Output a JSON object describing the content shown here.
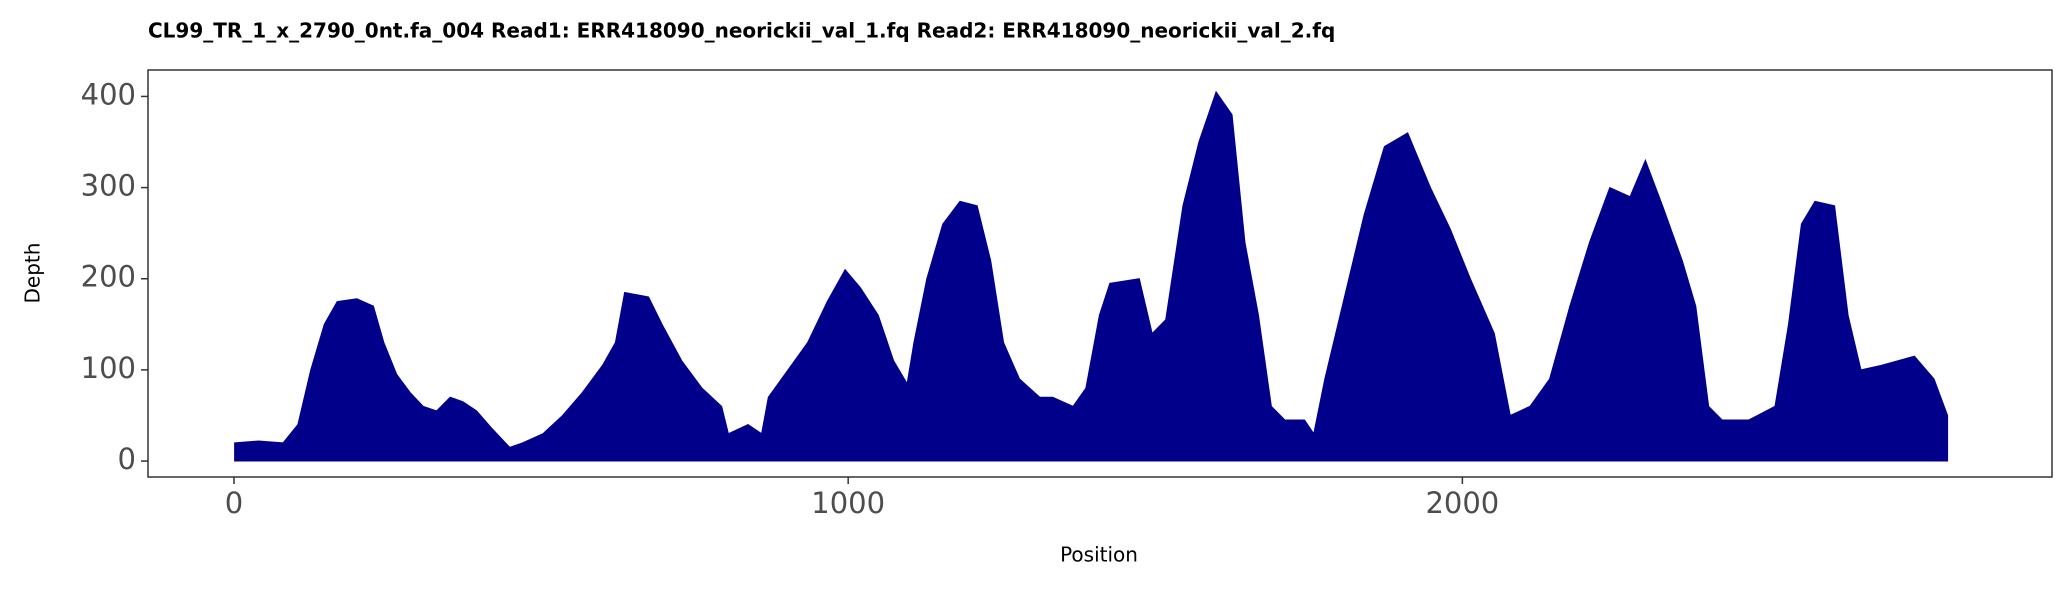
{
  "chart_data": {
    "type": "area",
    "title": "CL99_TR_1_x_2790_0nt.fa_004   Read1: ERR418090_neorickii_val_1.fq   Read2: ERR418090_neorickii_val_2.fq",
    "x_label": "Position",
    "y_label": "Depth",
    "color": "#00008b",
    "x": [
      1,
      40,
      80,
      104,
      125,
      147,
      168,
      200,
      227,
      244,
      265,
      287,
      308,
      330,
      352,
      373,
      395,
      421,
      449,
      470,
      503,
      535,
      567,
      600,
      621,
      636,
      675,
      697,
      729,
      762,
      794,
      805,
      837,
      859,
      870,
      902,
      934,
      966,
      995,
      1020,
      1049,
      1074,
      1096,
      1107,
      1128,
      1154,
      1182,
      1210,
      1232,
      1253,
      1279,
      1312,
      1333,
      1366,
      1387,
      1409,
      1426,
      1474,
      1495,
      1517,
      1545,
      1571,
      1599,
      1625,
      1646,
      1668,
      1689,
      1711,
      1743,
      1758,
      1776,
      1808,
      1840,
      1873,
      1911,
      1948,
      1980,
      2013,
      2052,
      2078,
      2110,
      2142,
      2175,
      2207,
      2240,
      2273,
      2298,
      2326,
      2358,
      2380,
      2401,
      2423,
      2466,
      2509,
      2531,
      2552,
      2574,
      2606,
      2628,
      2649,
      2682,
      2736,
      2768,
      2790
    ],
    "values": [
      20,
      22,
      20,
      40,
      100,
      150,
      175,
      178,
      170,
      130,
      95,
      75,
      60,
      55,
      70,
      65,
      55,
      35,
      15,
      20,
      30,
      50,
      75,
      105,
      130,
      185,
      180,
      150,
      110,
      80,
      60,
      30,
      40,
      30,
      70,
      100,
      130,
      175,
      210,
      190,
      160,
      110,
      85,
      130,
      200,
      260,
      285,
      280,
      220,
      130,
      90,
      70,
      70,
      60,
      80,
      160,
      195,
      200,
      140,
      155,
      280,
      350,
      405,
      380,
      240,
      160,
      60,
      45,
      45,
      30,
      90,
      180,
      270,
      345,
      360,
      300,
      255,
      200,
      140,
      50,
      60,
      90,
      170,
      240,
      300,
      290,
      330,
      280,
      220,
      170,
      60,
      45,
      45,
      60,
      150,
      260,
      285,
      280,
      160,
      100,
      105,
      115,
      90,
      50
    ],
    "xlim": [
      -140,
      2960
    ],
    "ylim": [
      -17.5,
      429
    ],
    "xticks": [
      0,
      1000,
      2000
    ],
    "yticks": [
      0,
      100,
      200,
      300,
      400
    ]
  }
}
